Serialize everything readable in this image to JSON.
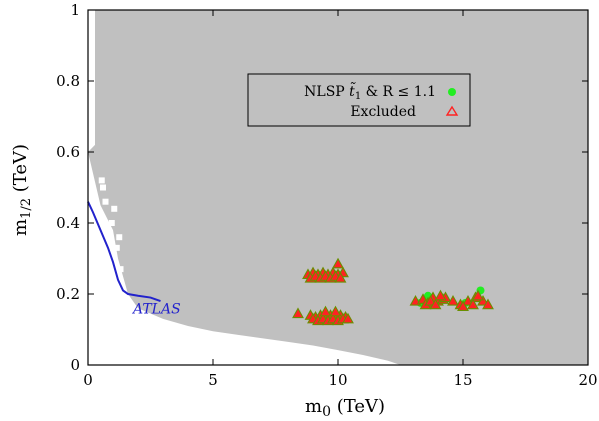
{
  "chart_data": {
    "type": "scatter",
    "title": "",
    "xlabel": "m₀ (TeV)",
    "ylabel": "m1/2 (TeV)",
    "xlim": [
      0,
      20
    ],
    "ylim": [
      0,
      1
    ],
    "xticks": [
      "0",
      "5",
      "10",
      "15",
      "20"
    ],
    "yticks": [
      "0",
      "0.2",
      "0.4",
      "0.6",
      "0.8",
      "1"
    ],
    "grid": false,
    "legend_position": "top-right",
    "legend": [
      {
        "label": "NLSP t̃₁ & R ≤ 1.1",
        "marker": "circle",
        "color": "#22ee22"
      },
      {
        "label": "Excluded",
        "marker": "triangle",
        "color": "#ff2222"
      }
    ],
    "background_region": {
      "name": "scanned parameter space",
      "color": "#c0c0c0",
      "lower_boundary": {
        "x": [
          0.0,
          0.5,
          1.0,
          1.2,
          1.6,
          2.0,
          3.0,
          4.0,
          5.0,
          6.0,
          7.0,
          8.0,
          9.0,
          10.0,
          11.0,
          12.0,
          12.5
        ],
        "y": [
          0.6,
          0.45,
          0.38,
          0.3,
          0.2,
          0.16,
          0.13,
          0.11,
          0.095,
          0.085,
          0.075,
          0.065,
          0.055,
          0.042,
          0.028,
          0.012,
          0.0
        ]
      }
    },
    "annotations": [
      {
        "text": "ATLAS",
        "x": 1.8,
        "y": 0.145,
        "color": "#2222cc"
      }
    ],
    "atlas_curve": {
      "color": "#2222cc",
      "x": [
        0.0,
        0.2,
        0.5,
        0.8,
        1.0,
        1.2,
        1.4,
        1.6,
        2.0,
        2.5,
        2.9
      ],
      "y": [
        0.46,
        0.43,
        0.38,
        0.33,
        0.29,
        0.24,
        0.21,
        0.2,
        0.195,
        0.19,
        0.18
      ]
    },
    "series": [
      {
        "name": "NLSP t̃₁ & R ≤ 1.1",
        "marker": "circle",
        "color": "#22ee22",
        "x": [
          8.9,
          9.2,
          9.6,
          10.0,
          9.0,
          9.6,
          10.1,
          13.3,
          13.6,
          14.2,
          15.7,
          15.1
        ],
        "y": [
          0.25,
          0.255,
          0.25,
          0.255,
          0.13,
          0.135,
          0.13,
          0.175,
          0.195,
          0.185,
          0.21,
          0.175
        ]
      },
      {
        "name": "Excluded",
        "marker": "triangle",
        "color": "#ff2222",
        "stroke": "#6a8e00",
        "x": [
          8.8,
          9.0,
          9.2,
          9.4,
          9.6,
          9.8,
          10.0,
          10.2,
          8.9,
          9.1,
          9.3,
          9.5,
          9.7,
          9.9,
          10.1,
          10.0,
          8.4,
          8.9,
          9.1,
          9.3,
          9.5,
          9.7,
          9.9,
          10.1,
          10.3,
          9.0,
          9.2,
          9.4,
          9.6,
          9.8,
          10.0,
          10.2,
          10.4,
          9.5,
          9.9,
          13.1,
          13.4,
          13.6,
          13.8,
          14.0,
          14.2,
          13.5,
          13.7,
          13.9,
          14.3,
          14.6,
          14.9,
          15.2,
          15.5,
          15.8,
          16.0,
          15.0,
          15.4,
          14.1,
          15.6
        ],
        "y": [
          0.255,
          0.26,
          0.255,
          0.26,
          0.255,
          0.26,
          0.255,
          0.26,
          0.245,
          0.25,
          0.245,
          0.25,
          0.245,
          0.25,
          0.245,
          0.285,
          0.145,
          0.14,
          0.135,
          0.14,
          0.135,
          0.14,
          0.135,
          0.14,
          0.135,
          0.13,
          0.125,
          0.13,
          0.125,
          0.13,
          0.125,
          0.13,
          0.13,
          0.15,
          0.15,
          0.18,
          0.185,
          0.175,
          0.19,
          0.18,
          0.185,
          0.17,
          0.18,
          0.17,
          0.19,
          0.18,
          0.17,
          0.18,
          0.19,
          0.18,
          0.17,
          0.165,
          0.17,
          0.195,
          0.195
        ]
      }
    ]
  }
}
